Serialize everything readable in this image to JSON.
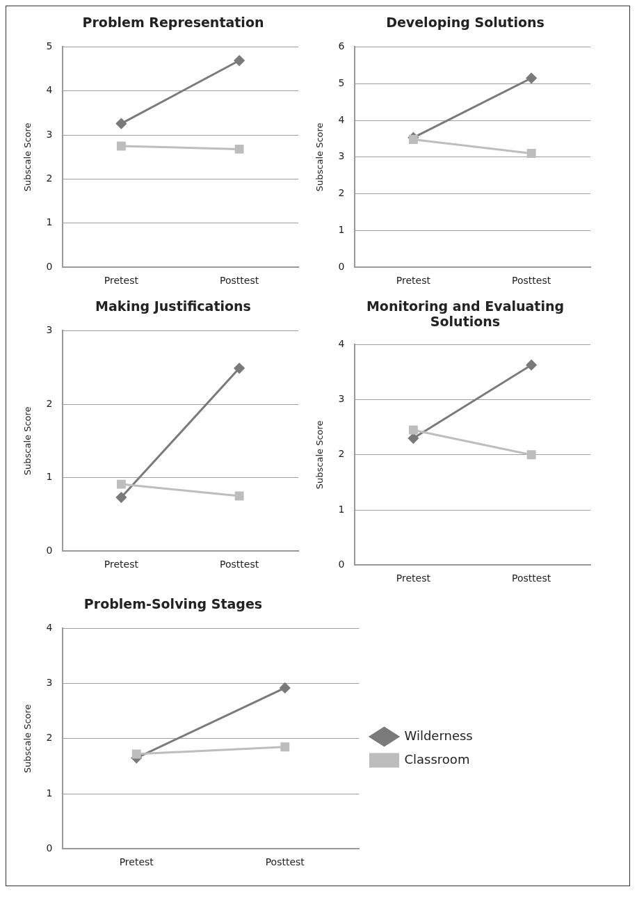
{
  "chart_data": [
    {
      "type": "line",
      "title": "Problem Representation",
      "ylabel": "Subscale Score",
      "categories": [
        "Pretest",
        "Posttest"
      ],
      "ylim": [
        0,
        5
      ],
      "yticks": [
        0,
        1,
        2,
        3,
        4,
        5
      ],
      "grid": "y",
      "series": [
        {
          "color": "#7a7a7a",
          "marker": "diamond",
          "values": [
            3.26,
            4.69
          ]
        },
        {
          "color": "#bdbdbd",
          "marker": "square",
          "values": [
            2.75,
            2.68
          ]
        }
      ]
    },
    {
      "type": "line",
      "title": "Developing Solutions",
      "ylabel": "Subscale Score",
      "categories": [
        "Pretest",
        "Posttest"
      ],
      "ylim": [
        0,
        6
      ],
      "yticks": [
        0,
        1,
        2,
        3,
        4,
        5,
        6
      ],
      "grid": "y",
      "series": [
        {
          "color": "#7a7a7a",
          "marker": "diamond",
          "values": [
            3.53,
            5.15
          ]
        },
        {
          "color": "#bdbdbd",
          "marker": "square",
          "values": [
            3.48,
            3.1
          ]
        }
      ]
    },
    {
      "type": "line",
      "title": "Making Justifications",
      "ylabel": "Subscale Score",
      "categories": [
        "Pretest",
        "Posttest"
      ],
      "ylim": [
        0,
        3
      ],
      "yticks": [
        0,
        1,
        2,
        3
      ],
      "grid": "y",
      "series": [
        {
          "color": "#7a7a7a",
          "marker": "diamond",
          "values": [
            0.73,
            2.49
          ]
        },
        {
          "color": "#bdbdbd",
          "marker": "square",
          "values": [
            0.91,
            0.75
          ]
        }
      ]
    },
    {
      "type": "line",
      "title": "Monitoring and Evaluating Solutions",
      "ylabel": "Subscale Score",
      "categories": [
        "Pretest",
        "Posttest"
      ],
      "ylim": [
        0,
        4
      ],
      "yticks": [
        0,
        1,
        2,
        3,
        4
      ],
      "grid": "y",
      "series": [
        {
          "color": "#7a7a7a",
          "marker": "diamond",
          "values": [
            2.3,
            3.63
          ]
        },
        {
          "color": "#bdbdbd",
          "marker": "square",
          "values": [
            2.45,
            2.0
          ]
        }
      ]
    },
    {
      "type": "line",
      "title": "Problem-Solving Stages",
      "ylabel": "Subscale Score",
      "categories": [
        "Pretest",
        "Posttest"
      ],
      "ylim": [
        0,
        4
      ],
      "yticks": [
        0,
        1,
        2,
        3,
        4
      ],
      "grid": "y",
      "legend": "right",
      "series": [
        {
          "name": "Wilderness",
          "color": "#7a7a7a",
          "marker": "diamond",
          "values": [
            1.65,
            2.92
          ]
        },
        {
          "name": "Classroom",
          "color": "#bdbdbd",
          "marker": "square",
          "values": [
            1.72,
            1.85
          ]
        }
      ]
    }
  ]
}
